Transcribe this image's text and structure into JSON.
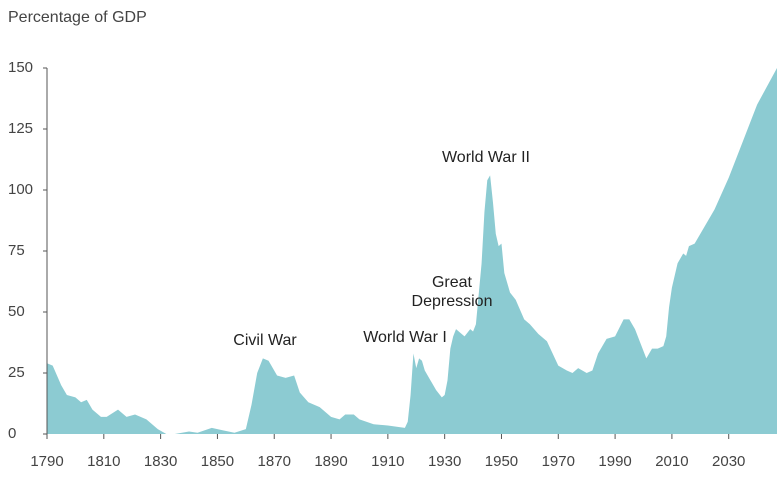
{
  "chart_data": {
    "type": "area",
    "y_label": "Percentage of GDP",
    "color": "#8ccbd2",
    "x": [
      1790,
      1792,
      1795,
      1797,
      1800,
      1802,
      1804,
      1806,
      1809,
      1811,
      1815,
      1818,
      1821,
      1825,
      1829,
      1832,
      1835,
      1840,
      1843,
      1848,
      1852,
      1856,
      1860,
      1862,
      1864,
      1866,
      1868,
      1871,
      1874,
      1877,
      1879,
      1882,
      1886,
      1890,
      1893,
      1895,
      1898,
      1900,
      1905,
      1910,
      1916,
      1917,
      1918,
      1919,
      1920,
      1921,
      1922,
      1923,
      1925,
      1927,
      1929,
      1930,
      1931,
      1932,
      1933,
      1934,
      1936,
      1937,
      1939,
      1940,
      1941,
      1943,
      1944,
      1945,
      1946,
      1947,
      1948,
      1949,
      1950,
      1951,
      1953,
      1955,
      1958,
      1960,
      1963,
      1966,
      1970,
      1973,
      1975,
      1977,
      1980,
      1982,
      1984,
      1987,
      1990,
      1993,
      1995,
      1997,
      1999,
      2001,
      2003,
      2005,
      2007,
      2008,
      2009,
      2010,
      2012,
      2014,
      2015,
      2016,
      2018,
      2020,
      2025,
      2030,
      2035,
      2040,
      2047
    ],
    "values": [
      29,
      28,
      20,
      16,
      15,
      13,
      14,
      10,
      7,
      7,
      10,
      7,
      8,
      6,
      2,
      0,
      0,
      1,
      0.5,
      2.5,
      1.5,
      0.5,
      2,
      12,
      25,
      31,
      30,
      24,
      23,
      24,
      17,
      13,
      11,
      7,
      6,
      8,
      8,
      6,
      4,
      3.5,
      2.5,
      5,
      16,
      33,
      27,
      31,
      30,
      26,
      22,
      18,
      15,
      16,
      22,
      35,
      40,
      43,
      41,
      40,
      43,
      42,
      45,
      70,
      91,
      104,
      106,
      95,
      82,
      77,
      78,
      66,
      58,
      55,
      47,
      45,
      41,
      38,
      28,
      26,
      25,
      27,
      25,
      26,
      33,
      39,
      40,
      47,
      47,
      43,
      37,
      31,
      35,
      35,
      36,
      40,
      52,
      60,
      70,
      74,
      73,
      77,
      78,
      82,
      92,
      105,
      120,
      135,
      150
    ],
    "xlim": [
      1790,
      2047
    ],
    "ylim": [
      0,
      150
    ],
    "xticks": [
      1790,
      1810,
      1830,
      1850,
      1870,
      1890,
      1910,
      1930,
      1950,
      1970,
      1990,
      2010,
      2030
    ],
    "yticks": [
      0,
      25,
      50,
      75,
      100,
      125,
      150
    ],
    "annotations": [
      "Civil War",
      "World War I",
      [
        "Great",
        "Depression"
      ],
      "World War II"
    ]
  }
}
